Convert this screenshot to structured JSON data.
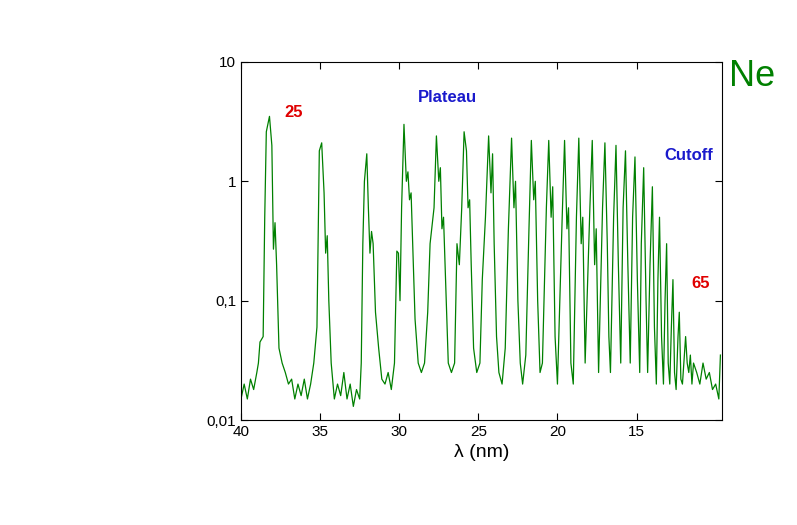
{
  "chart_data": {
    "type": "line",
    "title": "Ne",
    "x_label": "λ (nm)",
    "color": "#008000",
    "log": "y",
    "xlim": [
      40,
      9.6
    ],
    "xticks": [
      40,
      35,
      30,
      25,
      20,
      15
    ],
    "ylim": [
      0.01,
      10
    ],
    "yticks": [
      {
        "value": 0.01,
        "label": "0,01"
      },
      {
        "value": 0.1,
        "label": "0,1"
      },
      1,
      10
    ],
    "annotations": [
      {
        "text": "25",
        "color": "#e00000"
      },
      {
        "text": "Plateau",
        "color": "#1a1acc"
      },
      {
        "text": "Cutoff",
        "color": "#1a1acc"
      },
      {
        "text": "65",
        "color": "#e00000"
      }
    ],
    "x": [
      40,
      39.8,
      39.6,
      39.4,
      39.2,
      39.0,
      38.9,
      38.8,
      38.6,
      38.5,
      38.4,
      38.2,
      38.05,
      37.95,
      37.85,
      37.75,
      37.6,
      37.4,
      37.2,
      37.0,
      36.8,
      36.6,
      36.4,
      36.2,
      36.0,
      35.8,
      35.6,
      35.4,
      35.2,
      35.05,
      34.9,
      34.75,
      34.65,
      34.55,
      34.45,
      34.3,
      34.1,
      33.9,
      33.7,
      33.5,
      33.3,
      33.1,
      32.9,
      32.7,
      32.5,
      32.4,
      32.3,
      32.2,
      32.05,
      31.95,
      31.85,
      31.75,
      31.65,
      31.5,
      31.3,
      31.1,
      30.9,
      30.7,
      30.5,
      30.3,
      30.15,
      30.05,
      29.95,
      29.85,
      29.7,
      29.55,
      29.45,
      29.35,
      29.25,
      29.15,
      29.0,
      28.8,
      28.6,
      28.4,
      28.2,
      28.05,
      27.8,
      27.65,
      27.5,
      27.4,
      27.3,
      27.2,
      27.05,
      26.9,
      26.7,
      26.5,
      26.35,
      26.2,
      26.05,
      25.9,
      25.75,
      25.65,
      25.55,
      25.45,
      25.3,
      25.1,
      24.9,
      24.75,
      24.55,
      24.35,
      24.2,
      24.1,
      24.0,
      23.85,
      23.7,
      23.5,
      23.3,
      23.1,
      22.9,
      22.75,
      22.65,
      22.5,
      22.35,
      22.2,
      22.0,
      21.8,
      21.65,
      21.5,
      21.4,
      21.25,
      21.1,
      20.95,
      20.7,
      20.55,
      20.4,
      20.3,
      20.15,
      20.0,
      19.7,
      19.55,
      19.4,
      19.3,
      19.15,
      19.0,
      18.8,
      18.65,
      18.5,
      18.4,
      18.25,
      17.95,
      17.8,
      17.65,
      17.55,
      17.4,
      17.15,
      17.0,
      16.85,
      16.75,
      16.65,
      16.45,
      16.3,
      16.15,
      16.0,
      15.85,
      15.7,
      15.55,
      15.4,
      15.25,
      15.1,
      14.95,
      14.8,
      14.7,
      14.55,
      14.4,
      14.3,
      14.15,
      14.0,
      13.87,
      13.75,
      13.65,
      13.55,
      13.42,
      13.3,
      13.2,
      13.1,
      13.0,
      12.9,
      12.8,
      12.7,
      12.6,
      12.5,
      12.38,
      12.3,
      12.2,
      12.1,
      11.95,
      11.9,
      11.8,
      11.7,
      11.6,
      11.5,
      11.4,
      11.2,
      11.0,
      10.8,
      10.6,
      10.4,
      10.2,
      10.0,
      9.8,
      9.7
    ],
    "values": [
      0.015,
      0.02,
      0.015,
      0.022,
      0.018,
      0.025,
      0.03,
      0.045,
      0.05,
      0.5,
      2.6,
      3.5,
      2.0,
      0.27,
      0.45,
      0.2,
      0.04,
      0.03,
      0.025,
      0.02,
      0.022,
      0.015,
      0.02,
      0.016,
      0.022,
      0.015,
      0.02,
      0.03,
      0.06,
      1.8,
      2.1,
      0.8,
      0.25,
      0.35,
      0.1,
      0.03,
      0.015,
      0.02,
      0.016,
      0.025,
      0.015,
      0.02,
      0.013,
      0.018,
      0.015,
      0.03,
      0.3,
      1.0,
      1.7,
      0.6,
      0.25,
      0.38,
      0.3,
      0.08,
      0.04,
      0.022,
      0.02,
      0.025,
      0.018,
      0.03,
      0.26,
      0.25,
      0.1,
      0.6,
      3.0,
      1.0,
      1.2,
      0.7,
      0.8,
      0.3,
      0.07,
      0.03,
      0.025,
      0.03,
      0.08,
      0.3,
      0.6,
      2.4,
      1.0,
      1.3,
      0.4,
      0.5,
      0.12,
      0.03,
      0.025,
      0.03,
      0.3,
      0.2,
      0.6,
      2.6,
      1.8,
      0.6,
      0.7,
      0.2,
      0.04,
      0.025,
      0.03,
      0.15,
      0.5,
      2.4,
      0.8,
      1.7,
      0.3,
      0.05,
      0.025,
      0.02,
      0.04,
      0.4,
      2.3,
      0.6,
      1.0,
      0.1,
      0.03,
      0.02,
      0.035,
      0.4,
      2.2,
      0.7,
      1.0,
      0.1,
      0.025,
      0.03,
      0.6,
      2.2,
      0.5,
      0.9,
      0.05,
      0.02,
      0.5,
      2.2,
      0.4,
      0.6,
      0.03,
      0.02,
      0.5,
      2.3,
      0.3,
      0.5,
      0.03,
      0.6,
      2.2,
      0.2,
      0.4,
      0.025,
      0.6,
      2.1,
      0.3,
      0.05,
      0.025,
      0.5,
      2.0,
      0.2,
      0.03,
      0.6,
      1.8,
      0.2,
      0.03,
      0.5,
      1.6,
      0.15,
      0.025,
      0.3,
      1.3,
      0.1,
      0.025,
      0.2,
      0.9,
      0.06,
      0.02,
      0.15,
      0.5,
      0.05,
      0.02,
      0.1,
      0.3,
      0.03,
      0.02,
      0.06,
      0.15,
      0.025,
      0.018,
      0.05,
      0.08,
      0.022,
      0.02,
      0.04,
      0.05,
      0.03,
      0.025,
      0.035,
      0.02,
      0.03,
      0.025,
      0.02,
      0.03,
      0.022,
      0.025,
      0.018,
      0.02,
      0.015,
      0.035
    ]
  }
}
